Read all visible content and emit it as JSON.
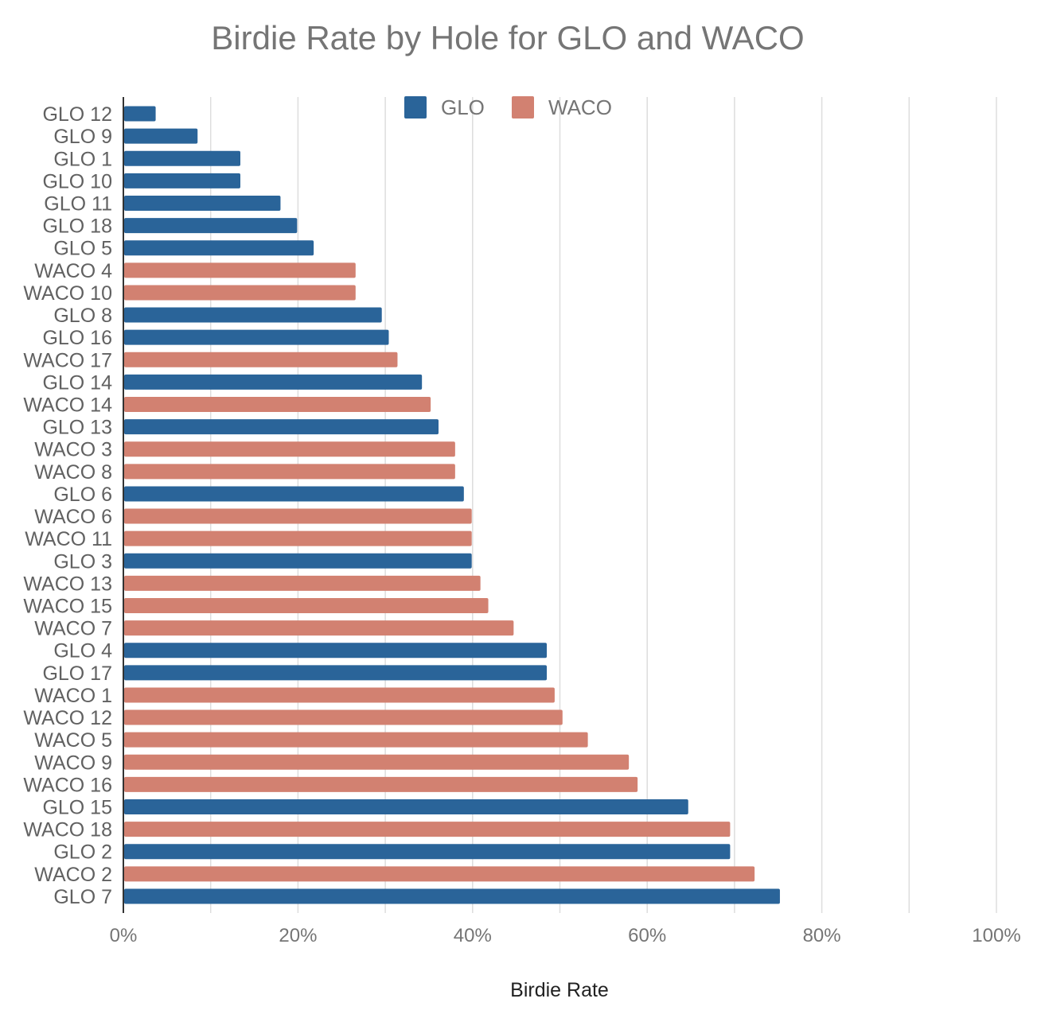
{
  "chart_data": {
    "type": "bar",
    "orientation": "horizontal",
    "title": "Birdie Rate by Hole for GLO and WACO",
    "xlabel": "Birdie Rate",
    "ylabel": "",
    "xlim": [
      0,
      1
    ],
    "x_ticks": [
      "0%",
      "20%",
      "40%",
      "60%",
      "80%",
      "100%"
    ],
    "grid": true,
    "legend_position": "top",
    "series": [
      {
        "name": "GLO",
        "color": "#2a6499"
      },
      {
        "name": "WACO",
        "color": "#d28171"
      }
    ],
    "categories": [
      "GLO 12",
      "GLO 9",
      "GLO 1",
      "GLO 10",
      "GLO 11",
      "GLO 18",
      "GLO 5",
      "WACO 4",
      "WACO 10",
      "GLO 8",
      "GLO 16",
      "WACO 17",
      "GLO 14",
      "WACO 14",
      "GLO 13",
      "WACO 3",
      "WACO 8",
      "GLO 6",
      "WACO 6",
      "WACO 11",
      "GLO 3",
      "WACO 13",
      "WACO 15",
      "WACO 7",
      "GLO 4",
      "GLO 17",
      "WACO 1",
      "WACO 12",
      "WACO 5",
      "WACO 9",
      "WACO 16",
      "GLO 15",
      "WACO 18",
      "GLO 2",
      "WACO 2",
      "GLO 7"
    ],
    "bar_series": [
      "GLO",
      "GLO",
      "GLO",
      "GLO",
      "GLO",
      "GLO",
      "GLO",
      "WACO",
      "WACO",
      "GLO",
      "GLO",
      "WACO",
      "GLO",
      "WACO",
      "GLO",
      "WACO",
      "WACO",
      "GLO",
      "WACO",
      "WACO",
      "GLO",
      "WACO",
      "WACO",
      "WACO",
      "GLO",
      "GLO",
      "WACO",
      "WACO",
      "WACO",
      "WACO",
      "WACO",
      "GLO",
      "WACO",
      "GLO",
      "WACO",
      "GLO"
    ],
    "values": [
      0.037,
      0.085,
      0.134,
      0.134,
      0.18,
      0.199,
      0.218,
      0.266,
      0.266,
      0.296,
      0.304,
      0.314,
      0.342,
      0.352,
      0.361,
      0.38,
      0.38,
      0.39,
      0.399,
      0.399,
      0.399,
      0.409,
      0.418,
      0.447,
      0.485,
      0.485,
      0.494,
      0.503,
      0.532,
      0.579,
      0.589,
      0.647,
      0.695,
      0.695,
      0.723,
      0.752
    ]
  }
}
